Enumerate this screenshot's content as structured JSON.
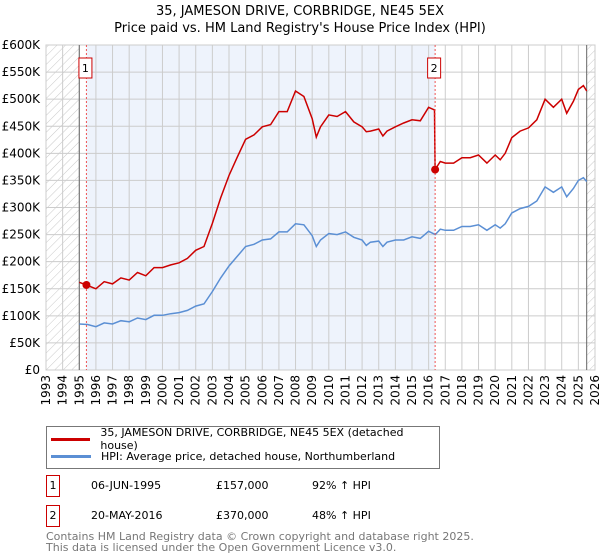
{
  "title": "35, JAMESON DRIVE, CORBRIDGE, NE45 5EX",
  "subtitle": "Price paid vs. HM Land Registry's House Price Index (HPI)",
  "colors": {
    "property": "#cc0000",
    "hpi": "#5b8fd4",
    "shade": "#eef3fc",
    "grid": "#cccccc"
  },
  "chart_data": {
    "type": "line",
    "title": "Price paid vs. HM Land Registry's House Price Index (HPI)",
    "xlim": [
      1993,
      2026
    ],
    "ylim": [
      0,
      600000
    ],
    "x_ticks": [
      "1993",
      "1994",
      "1995",
      "1996",
      "1997",
      "1998",
      "1999",
      "2000",
      "2001",
      "2002",
      "2003",
      "2004",
      "2005",
      "2006",
      "2007",
      "2008",
      "2009",
      "2010",
      "2011",
      "2012",
      "2013",
      "2014",
      "2015",
      "2016",
      "2017",
      "2018",
      "2019",
      "2020",
      "2021",
      "2022",
      "2023",
      "2024",
      "2025",
      "2026"
    ],
    "y_ticks": [
      {
        "v": 0,
        "label": "£0"
      },
      {
        "v": 50000,
        "label": "£50K"
      },
      {
        "v": 100000,
        "label": "£100K"
      },
      {
        "v": 150000,
        "label": "£150K"
      },
      {
        "v": 200000,
        "label": "£200K"
      },
      {
        "v": 250000,
        "label": "£250K"
      },
      {
        "v": 300000,
        "label": "£300K"
      },
      {
        "v": 350000,
        "label": "£350K"
      },
      {
        "v": 400000,
        "label": "£400K"
      },
      {
        "v": 450000,
        "label": "£450K"
      },
      {
        "v": 500000,
        "label": "£500K"
      },
      {
        "v": 550000,
        "label": "£550K"
      },
      {
        "v": 600000,
        "label": "£600K"
      }
    ],
    "grid": true,
    "data_start": 1995.0,
    "data_end": 2025.5,
    "series": [
      {
        "name": "35, JAMESON DRIVE, CORBRIDGE, NE45 5EX (detached house)",
        "key": "property",
        "x": [
          1995.0,
          1995.43,
          1996,
          1996.5,
          1997,
          1997.5,
          1998,
          1998.5,
          1999,
          1999.5,
          2000,
          2000.5,
          2001,
          2001.5,
          2002,
          2002.5,
          2003,
          2003.5,
          2004,
          2004.5,
          2005,
          2005.5,
          2006,
          2006.5,
          2007,
          2007.5,
          2008,
          2008.5,
          2009,
          2009.25,
          2009.5,
          2010,
          2010.5,
          2011,
          2011.5,
          2012,
          2012.25,
          2012.5,
          2013,
          2013.25,
          2013.5,
          2014,
          2014.5,
          2015,
          2015.5,
          2016,
          2016.35,
          2016.39,
          2016.7,
          2017,
          2017.5,
          2018,
          2018.5,
          2019,
          2019.5,
          2020,
          2020.3,
          2020.6,
          2021,
          2021.5,
          2022,
          2022.5,
          2023,
          2023.5,
          2024,
          2024.3,
          2024.7,
          2025,
          2025.3,
          2025.5
        ],
        "y": [
          162000,
          157000,
          150000,
          163000,
          159000,
          170000,
          166000,
          180000,
          174000,
          189000,
          189000,
          194000,
          198000,
          206000,
          221000,
          228000,
          271000,
          318000,
          359000,
          393000,
          426000,
          434000,
          449000,
          453000,
          477000,
          477000,
          515000,
          505000,
          464000,
          430000,
          449000,
          471000,
          468000,
          477000,
          458000,
          449000,
          440000,
          441000,
          445000,
          432000,
          441000,
          449000,
          456000,
          462000,
          460000,
          485000,
          480000,
          370000,
          385000,
          382000,
          382000,
          392000,
          392000,
          397000,
          382000,
          397000,
          388000,
          400000,
          429000,
          441000,
          447000,
          462000,
          500000,
          485000,
          500000,
          474000,
          496000,
          518000,
          525000,
          515000
        ]
      },
      {
        "name": "HPI: Average price, detached house, Northumberland",
        "key": "hpi",
        "x": [
          1995.0,
          1995.5,
          1996,
          1996.5,
          1997,
          1997.5,
          1998,
          1998.5,
          1999,
          1999.5,
          2000,
          2000.5,
          2001,
          2001.5,
          2002,
          2002.5,
          2003,
          2003.5,
          2004,
          2004.5,
          2005,
          2005.5,
          2006,
          2006.5,
          2007,
          2007.5,
          2008,
          2008.5,
          2009,
          2009.25,
          2009.5,
          2010,
          2010.5,
          2011,
          2011.5,
          2012,
          2012.25,
          2012.5,
          2013,
          2013.25,
          2013.5,
          2014,
          2014.5,
          2015,
          2015.5,
          2016,
          2016.4,
          2016.7,
          2017,
          2017.5,
          2018,
          2018.5,
          2019,
          2019.5,
          2020,
          2020.3,
          2020.6,
          2021,
          2021.5,
          2022,
          2022.5,
          2023,
          2023.5,
          2024,
          2024.3,
          2024.7,
          2025,
          2025.3,
          2025.5
        ],
        "y": [
          85000,
          84000,
          80000,
          87000,
          85000,
          91000,
          89000,
          96000,
          93000,
          101000,
          101000,
          104000,
          106000,
          110000,
          118000,
          122000,
          145000,
          170000,
          192000,
          210000,
          228000,
          232000,
          240000,
          242000,
          255000,
          255000,
          270000,
          268000,
          248000,
          228000,
          240000,
          252000,
          250000,
          255000,
          245000,
          240000,
          230000,
          236000,
          238000,
          228000,
          236000,
          240000,
          240000,
          246000,
          243000,
          256000,
          250000,
          260000,
          258000,
          258000,
          265000,
          265000,
          268000,
          258000,
          268000,
          262000,
          270000,
          290000,
          298000,
          302000,
          312000,
          338000,
          328000,
          338000,
          320000,
          335000,
          350000,
          355000,
          348000
        ]
      }
    ],
    "sales": [
      {
        "label": "1",
        "x": 1995.43,
        "y": 157000
      },
      {
        "label": "2",
        "x": 2016.39,
        "y": 370000
      }
    ]
  },
  "legend": {
    "property": "35, JAMESON DRIVE, CORBRIDGE, NE45 5EX (detached house)",
    "hpi": "HPI: Average price, detached house, Northumberland"
  },
  "transactions": [
    {
      "num": "1",
      "date": "06-JUN-1995",
      "price": "£157,000",
      "change": "92% ↑ HPI"
    },
    {
      "num": "2",
      "date": "20-MAY-2016",
      "price": "£370,000",
      "change": "48% ↑ HPI"
    }
  ],
  "footer": {
    "line1": "Contains HM Land Registry data © Crown copyright and database right 2025.",
    "line2": "This data is licensed under the Open Government Licence v3.0."
  }
}
